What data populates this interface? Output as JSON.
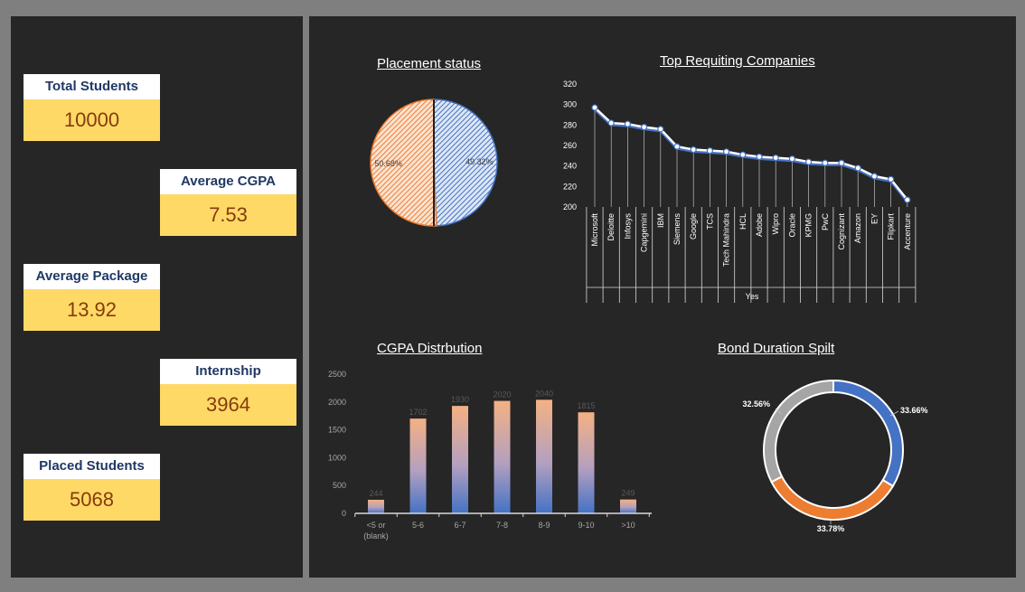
{
  "kpis": [
    {
      "label": "Total Students",
      "value": "10000"
    },
    {
      "label": "Average CGPA",
      "value": "7.53"
    },
    {
      "label": "Average Package",
      "value": "13.92"
    },
    {
      "label": "Internship",
      "value": "3964"
    },
    {
      "label": "Placed Students",
      "value": "5068"
    }
  ],
  "colors": {
    "kpi_label_bg": "#ffffff",
    "kpi_label_text": "#1f3864",
    "kpi_value_bg": "#ffd966",
    "kpi_value_text": "#843c0c",
    "panel_bg": "#262626"
  },
  "chart_data": [
    {
      "type": "pie",
      "title": "Placement status",
      "slices": [
        {
          "label": "49.32%",
          "value": 49.32,
          "color": "#4472c4"
        },
        {
          "label": "50.68%",
          "value": 50.68,
          "color": "#ed7d31"
        }
      ]
    },
    {
      "type": "line",
      "title": "Top Requiting Companies",
      "xlabel": "Yes",
      "ylim": [
        200,
        320
      ],
      "yticks": [
        200,
        220,
        240,
        260,
        280,
        300,
        320
      ],
      "categories": [
        "Microsoft",
        "Deloitte",
        "Infosys",
        "Capgemini",
        "IBM",
        "Siemens",
        "Google",
        "TCS",
        "Tech Mahindra",
        "HCL",
        "Adobe",
        "Wipro",
        "Oracle",
        "KPMG",
        "PwC",
        "Cognizant",
        "Amazon",
        "EY",
        "Flipkart",
        "Accenture"
      ],
      "values": [
        297,
        282,
        281,
        278,
        276,
        259,
        256,
        255,
        254,
        251,
        249,
        248,
        247,
        244,
        243,
        243,
        238,
        230,
        227,
        207
      ]
    },
    {
      "type": "bar",
      "title": "CGPA Distrbution",
      "ylim": [
        0,
        2500
      ],
      "yticks": [
        0,
        500,
        1000,
        1500,
        2000,
        2500
      ],
      "categories": [
        "<5 or (blank)",
        "5-6",
        "6-7",
        "7-8",
        "8-9",
        "9-10",
        ">10"
      ],
      "category_lines": [
        [
          "<5 or",
          "(blank)"
        ],
        [
          "5-6"
        ],
        [
          "6-7"
        ],
        [
          "7-8"
        ],
        [
          "8-9"
        ],
        [
          "9-10"
        ],
        [
          ">10"
        ]
      ],
      "values": [
        244,
        1702,
        1930,
        2020,
        2040,
        1815,
        249
      ]
    },
    {
      "type": "pie",
      "donut": true,
      "title": "Bond Duration Spilt",
      "slices": [
        {
          "label": "33.66%",
          "value": 33.66,
          "color": "#4472c4"
        },
        {
          "label": "33.78%",
          "value": 33.78,
          "color": "#ed7d31"
        },
        {
          "label": "32.56%",
          "value": 32.56,
          "color": "#a5a5a5"
        }
      ]
    }
  ]
}
